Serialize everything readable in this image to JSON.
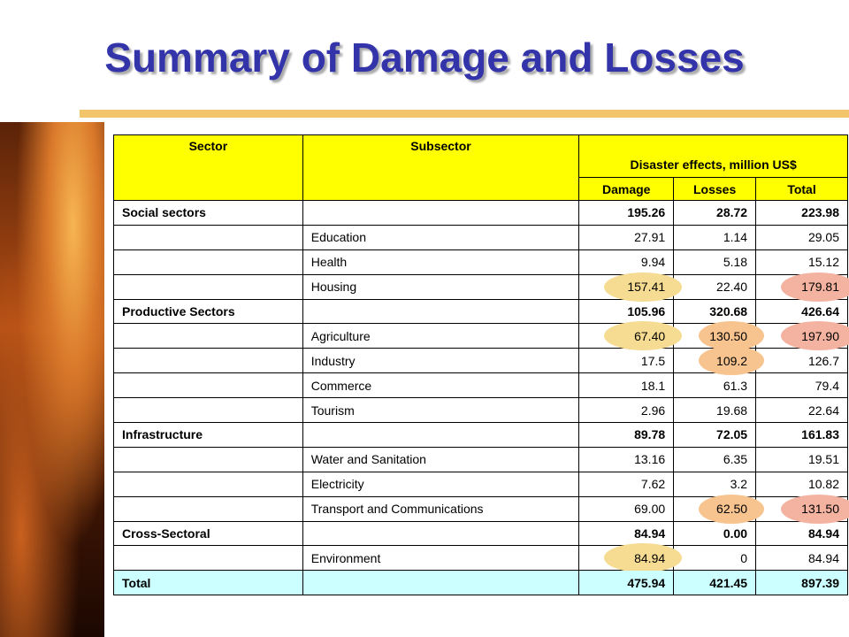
{
  "header": {
    "title": "Summary of Damage and Losses"
  },
  "table": {
    "header": {
      "sector": "Sector",
      "subsector": "Subsector",
      "group": "Disaster effects, million US$",
      "damage": "Damage",
      "losses": "Losses",
      "total": "Total"
    },
    "rows": [
      [
        "Social sectors",
        null,
        "195.26",
        "28.72",
        "223.98"
      ],
      [
        null,
        "Education",
        "27.91",
        "1.14",
        "29.05"
      ],
      [
        null,
        "Health",
        "9.94",
        "5.18",
        "15.12"
      ],
      [
        null,
        "Housing",
        "157.41",
        "22.40",
        "179.81"
      ],
      [
        "Productive Sectors",
        null,
        "105.96",
        "320.68",
        "426.64"
      ],
      [
        null,
        "Agriculture",
        "67.40",
        "130.50",
        "197.90"
      ],
      [
        null,
        "Industry",
        "17.5",
        "109.2",
        "126.7"
      ],
      [
        null,
        "Commerce",
        "18.1",
        "61.3",
        "79.4"
      ],
      [
        null,
        "Tourism",
        "2.96",
        "19.68",
        "22.64"
      ],
      [
        "Infrastructure",
        null,
        "89.78",
        "72.05",
        "161.83"
      ],
      [
        null,
        "Water and Sanitation",
        "13.16",
        "6.35",
        "19.51"
      ],
      [
        null,
        "Electricity",
        "7.62",
        "3.2",
        "10.82"
      ],
      [
        null,
        "Transport and Communications",
        "69.00",
        "62.50",
        "131.50"
      ],
      [
        "Cross-Sectoral",
        null,
        "84.94",
        "0.00",
        "84.94"
      ],
      [
        null,
        "Environment",
        "84.94",
        "0",
        "84.94"
      ],
      [
        "Total",
        null,
        "475.94",
        "421.45",
        "897.39"
      ]
    ]
  }
}
